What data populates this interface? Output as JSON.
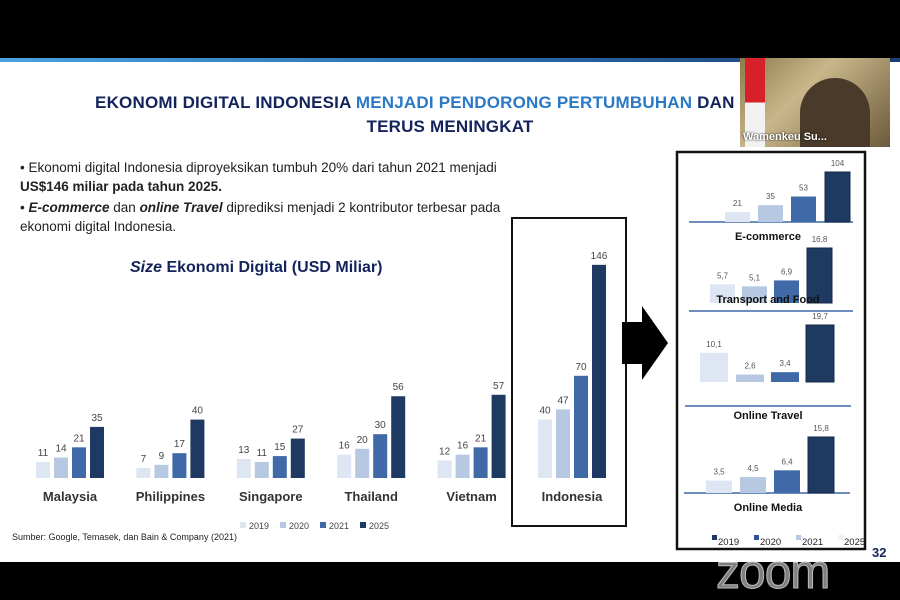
{
  "slide": {
    "title_part1": "EKONOMI DIGITAL INDONESIA ",
    "title_highlight": "MENJADI PENDORONG PERTUMBUHAN",
    "title_part2": " DAN DIPERK",
    "title_line2": "TERUS MENINGKAT",
    "bullet1_a": "Ekonomi digital Indonesia diproyeksikan tumbuh 20% dari tahun 2021 menjadi ",
    "bullet1_b": "US$146 miliar pada tahun 2025.",
    "bullet2_a": "E-commerce",
    "bullet2_b": " dan ",
    "bullet2_c": "online Travel",
    "bullet2_d": " diprediksi menjadi 2 kontributor terbesar pada ekonomi digital Indonesia.",
    "chart_title_italic": "Size",
    "chart_title_rest": " Ekonomi Digital (USD Miliar)",
    "source": "Sumber: Google, Temasek, dan Bain & Company (2021)",
    "page_number": "32",
    "colors": {
      "2019": "#dde6f2",
      "2020": "#b7c9e2",
      "2021": "#3f6aa7",
      "2025": "#1f3a62",
      "title": "#13235b",
      "highlight": "#2b78c5"
    }
  },
  "video": {
    "participant_name": "Wamenkeu Su...",
    "watermark": "zoom"
  },
  "chart_data": [
    {
      "type": "bar",
      "title": "Size Ekonomi Digital (USD Miliar)",
      "categories": [
        "Malaysia",
        "Philippines",
        "Singapore",
        "Thailand",
        "Vietnam",
        "Indonesia"
      ],
      "series": [
        {
          "name": "2019",
          "values": [
            11,
            7,
            13,
            16,
            12,
            40
          ]
        },
        {
          "name": "2020",
          "values": [
            14,
            9,
            11,
            20,
            16,
            47
          ]
        },
        {
          "name": "2021",
          "values": [
            21,
            17,
            15,
            30,
            21,
            70
          ]
        },
        {
          "name": "2025",
          "values": [
            35,
            40,
            27,
            56,
            57,
            146
          ]
        }
      ],
      "legend": "bottom",
      "grid": false
    },
    {
      "type": "bar",
      "title": "E-commerce",
      "categories": [
        "2019",
        "2020",
        "2021",
        "2025"
      ],
      "values": [
        21,
        35,
        53,
        104
      ],
      "labels": [
        "21",
        "35",
        "53",
        "104"
      ]
    },
    {
      "type": "bar",
      "title": "Transport and Food",
      "categories": [
        "2019",
        "2020",
        "2021",
        "2025"
      ],
      "values": [
        5.7,
        5.1,
        6.9,
        16.8
      ],
      "labels": [
        "5,7",
        "5,1",
        "6,9",
        "16,8"
      ]
    },
    {
      "type": "bar",
      "title": "Online Travel",
      "categories": [
        "2019",
        "2020",
        "2021",
        "2025"
      ],
      "values": [
        10.1,
        2.6,
        3.4,
        19.7
      ],
      "labels": [
        "10,1",
        "2,6",
        "3,4",
        "19,7"
      ]
    },
    {
      "type": "bar",
      "title": "Online Media",
      "categories": [
        "2019",
        "2020",
        "2021",
        "2025"
      ],
      "values": [
        3.5,
        4.5,
        6.4,
        15.8
      ],
      "labels": [
        "3,5",
        "4,5",
        "6,4",
        "15,8"
      ],
      "legend": [
        "2019",
        "2020",
        "2021",
        "2025"
      ]
    }
  ]
}
